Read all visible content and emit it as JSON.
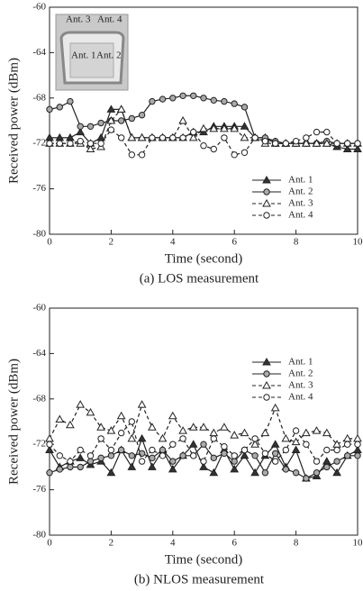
{
  "chart_data": [
    {
      "type": "line",
      "title": "(a) LOS measurement",
      "xlabel": "Time (second)",
      "ylabel": "Received power (dBm)",
      "x": [
        0,
        0.33,
        0.67,
        1,
        1.33,
        1.67,
        2,
        2.33,
        2.67,
        3,
        3.33,
        3.67,
        4,
        4.33,
        4.67,
        5,
        5.33,
        5.67,
        6,
        6.33,
        6.67,
        7,
        7.33,
        7.67,
        8,
        8.33,
        8.67,
        9,
        9.33,
        9.67,
        10
      ],
      "xlim": [
        0,
        10
      ],
      "xticks": [
        0,
        2,
        4,
        6,
        8,
        10
      ],
      "ylim": [
        -80,
        -60
      ],
      "yticks": [
        -80,
        -76,
        -72,
        -68,
        -64,
        -60
      ],
      "legend": "lower right",
      "annotations": [
        "Ant. 3",
        "Ant. 4",
        "Ant. 1",
        "Ant. 2"
      ],
      "series": [
        {
          "name": "Ant. 1",
          "color": "#222222",
          "marker": "triangle-filled",
          "dash": false,
          "values": [
            -71.5,
            -71.5,
            -71.5,
            -71,
            -72,
            -71.5,
            -69,
            -69,
            -71.5,
            -71.5,
            -71.5,
            -71.5,
            -71.5,
            -71.5,
            -71,
            -71,
            -70.5,
            -70.5,
            -70.5,
            -70.5,
            -71.5,
            -71.5,
            -72,
            -72,
            -72,
            -72,
            -72,
            -72,
            -72.3,
            -72.5,
            -72.5
          ]
        },
        {
          "name": "Ant. 2",
          "color": "#222222",
          "marker": "circle-gray",
          "dash": false,
          "values": [
            -69,
            -68.8,
            -68.3,
            -70.5,
            -70.5,
            -70.2,
            -70,
            -70,
            -69.8,
            -69.5,
            -68.3,
            -68.1,
            -68,
            -67.8,
            -67.8,
            -68,
            -68.2,
            -68.3,
            -68.5,
            -68.8,
            -71.5,
            -71.5,
            -71.8,
            -72,
            -72,
            -72,
            -72,
            -71.8,
            -72,
            -72,
            -72
          ]
        },
        {
          "name": "Ant. 3",
          "color": "#222222",
          "marker": "triangle-open",
          "dash": true,
          "values": [
            -72,
            -72,
            -72,
            -72,
            -72.5,
            -72.3,
            -70,
            -69,
            -71.5,
            -71.5,
            -71.5,
            -71.5,
            -71.5,
            -70,
            -71.5,
            -70.7,
            -70.7,
            -70.7,
            -70.7,
            -71.5,
            -71.5,
            -72,
            -72,
            -72,
            -72,
            -72,
            -72,
            -72,
            -72,
            -72,
            -72
          ]
        },
        {
          "name": "Ant. 4",
          "color": "#222222",
          "marker": "circle-open",
          "dash": true,
          "values": [
            -72,
            -72,
            -72,
            -71.8,
            -72,
            -72,
            -70.8,
            -71.5,
            -73,
            -73,
            -71.5,
            -71.5,
            -71.5,
            -71.5,
            -71,
            -72.2,
            -72.5,
            -71.5,
            -73,
            -72.8,
            -71.5,
            -71.8,
            -72,
            -72,
            -71.8,
            -71.5,
            -71,
            -71,
            -72,
            -72,
            -72
          ]
        }
      ]
    },
    {
      "type": "line",
      "title": "(b) NLOS measurement",
      "xlabel": "Time (second)",
      "ylabel": "Received power (dBm)",
      "x": [
        0,
        0.33,
        0.67,
        1,
        1.33,
        1.67,
        2,
        2.33,
        2.67,
        3,
        3.33,
        3.67,
        4,
        4.33,
        4.67,
        5,
        5.33,
        5.67,
        6,
        6.33,
        6.67,
        7,
        7.33,
        7.67,
        8,
        8.33,
        8.67,
        9,
        9.33,
        9.67,
        10
      ],
      "xlim": [
        0,
        10
      ],
      "xticks": [
        0,
        2,
        4,
        6,
        8,
        10
      ],
      "ylim": [
        -80,
        -60
      ],
      "yticks": [
        -80,
        -76,
        -72,
        -68,
        -64,
        -60
      ],
      "legend": "upper right",
      "series": [
        {
          "name": "Ant. 1",
          "color": "#222222",
          "marker": "triangle-filled",
          "dash": false,
          "values": [
            -72.5,
            -74,
            -73.5,
            -73.2,
            -73.8,
            -73.5,
            -74.5,
            -72.5,
            -74,
            -71.5,
            -74,
            -72.5,
            -74.2,
            -73,
            -72,
            -74,
            -74.5,
            -72.5,
            -74.2,
            -73,
            -74.5,
            -73,
            -72,
            -74,
            -72.5,
            -75,
            -74.8,
            -73.5,
            -74.5,
            -73,
            -72.5
          ]
        },
        {
          "name": "Ant. 2",
          "color": "#222222",
          "marker": "circle-gray",
          "dash": false,
          "values": [
            -74.5,
            -74.2,
            -74,
            -74,
            -73.5,
            -73.2,
            -73,
            -72.5,
            -73,
            -72.8,
            -73.2,
            -72.5,
            -73.5,
            -73,
            -73,
            -72,
            -73.2,
            -72.8,
            -73.5,
            -72.5,
            -73,
            -74.5,
            -72.8,
            -74.2,
            -74.5,
            -75,
            -74.5,
            -74,
            -73.5,
            -73,
            -73
          ]
        },
        {
          "name": "Ant. 3",
          "color": "#222222",
          "marker": "triangle-open",
          "dash": true,
          "values": [
            -71.5,
            -69.8,
            -70.3,
            -68.5,
            -69.2,
            -70.5,
            -70.8,
            -69.5,
            -71.5,
            -68.5,
            -70.5,
            -71.5,
            -69.5,
            -70.8,
            -70.5,
            -70.5,
            -71,
            -70.5,
            -71.2,
            -71,
            -72,
            -71,
            -68.8,
            -71.5,
            -71.8,
            -71,
            -70.8,
            -71,
            -72,
            -71.5,
            -71.5
          ]
        },
        {
          "name": "Ant. 4",
          "color": "#222222",
          "marker": "circle-open",
          "dash": true,
          "values": [
            -72,
            -73,
            -73.5,
            -72.5,
            -73,
            -71.5,
            -72.5,
            -71,
            -70,
            -73.5,
            -72.5,
            -73,
            -72,
            -71.5,
            -73,
            -73.5,
            -71.5,
            -72.2,
            -73,
            -72.5,
            -71.5,
            -72.8,
            -73.5,
            -72.5,
            -70.8,
            -72,
            -73.5,
            -72.5,
            -72.5,
            -72,
            -72
          ]
        }
      ]
    }
  ]
}
